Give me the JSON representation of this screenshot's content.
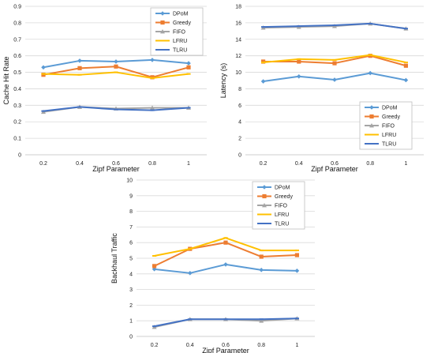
{
  "chart_data": [
    {
      "type": "line",
      "xlabel": "Zipf Parameter",
      "ylabel": "Cache Hit Rate",
      "categories": [
        "0.2",
        "0.4",
        "0.6",
        "0.8",
        "1"
      ],
      "ylim": [
        0,
        0.9
      ],
      "yticks": [
        "0",
        "0.1",
        "0.2",
        "0.3",
        "0.4",
        "0.5",
        "0.6",
        "0.7",
        "0.8",
        "0.9"
      ],
      "legend_position": "top-right",
      "series": [
        {
          "name": "DPoM",
          "values": [
            0.53,
            0.57,
            0.565,
            0.575,
            0.555
          ],
          "color": "#5b9bd5",
          "marker": "diamond"
        },
        {
          "name": "Greedy",
          "values": [
            0.485,
            0.525,
            0.535,
            0.47,
            0.53
          ],
          "color": "#ed7d31",
          "marker": "square"
        },
        {
          "name": "FIFO",
          "values": [
            0.26,
            0.29,
            0.28,
            0.285,
            0.285
          ],
          "color": "#a5a5a5",
          "marker": "triangle"
        },
        {
          "name": "LFRU",
          "values": [
            0.49,
            0.485,
            0.5,
            0.465,
            0.49
          ],
          "color": "#ffc000",
          "marker": "line"
        },
        {
          "name": "TLRU",
          "values": [
            0.265,
            0.29,
            0.275,
            0.27,
            0.285
          ],
          "color": "#4472c4",
          "marker": "line"
        }
      ]
    },
    {
      "type": "line",
      "xlabel": "Zipf Parameter",
      "ylabel": "Latency (s)",
      "categories": [
        "0.2",
        "0.4",
        "0.6",
        "0.8",
        "1"
      ],
      "ylim": [
        0,
        18
      ],
      "yticks": [
        "0",
        "2",
        "4",
        "6",
        "8",
        "10",
        "12",
        "14",
        "16",
        "18"
      ],
      "legend_position": "bottom-right",
      "series": [
        {
          "name": "DPoM",
          "values": [
            8.9,
            9.5,
            9.1,
            9.9,
            9.05
          ],
          "color": "#5b9bd5",
          "marker": "diamond"
        },
        {
          "name": "Greedy",
          "values": [
            11.3,
            11.3,
            11.1,
            12.0,
            10.8
          ],
          "color": "#ed7d31",
          "marker": "square"
        },
        {
          "name": "FIFO",
          "values": [
            15.4,
            15.5,
            15.6,
            15.9,
            15.3
          ],
          "color": "#a5a5a5",
          "marker": "triangle"
        },
        {
          "name": "LFRU",
          "values": [
            11.2,
            11.6,
            11.5,
            12.1,
            11.2
          ],
          "color": "#ffc000",
          "marker": "line"
        },
        {
          "name": "TLRU",
          "values": [
            15.5,
            15.6,
            15.7,
            15.9,
            15.3
          ],
          "color": "#4472c4",
          "marker": "line"
        }
      ]
    },
    {
      "type": "line",
      "xlabel": "Zipf Parameter",
      "ylabel": "Backhaul Traffic",
      "categories": [
        "0.2",
        "0.4",
        "0.6",
        "0.8",
        "1"
      ],
      "ylim": [
        0,
        10
      ],
      "yticks": [
        "0",
        "1",
        "2",
        "3",
        "4",
        "5",
        "6",
        "7",
        "8",
        "9",
        "10"
      ],
      "legend_position": "top-right",
      "series": [
        {
          "name": "DPoM",
          "values": [
            4.3,
            4.05,
            4.6,
            4.25,
            4.2
          ],
          "color": "#5b9bd5",
          "marker": "diamond"
        },
        {
          "name": "Greedy",
          "values": [
            4.5,
            5.6,
            6.0,
            5.1,
            5.2
          ],
          "color": "#ed7d31",
          "marker": "square"
        },
        {
          "name": "FIFO",
          "values": [
            0.6,
            1.1,
            1.1,
            1.0,
            1.15
          ],
          "color": "#a5a5a5",
          "marker": "triangle"
        },
        {
          "name": "LFRU",
          "values": [
            5.15,
            5.6,
            6.3,
            5.5,
            5.5
          ],
          "color": "#ffc000",
          "marker": "line"
        },
        {
          "name": "TLRU",
          "values": [
            0.65,
            1.1,
            1.1,
            1.1,
            1.15
          ],
          "color": "#4472c4",
          "marker": "line"
        }
      ]
    }
  ]
}
